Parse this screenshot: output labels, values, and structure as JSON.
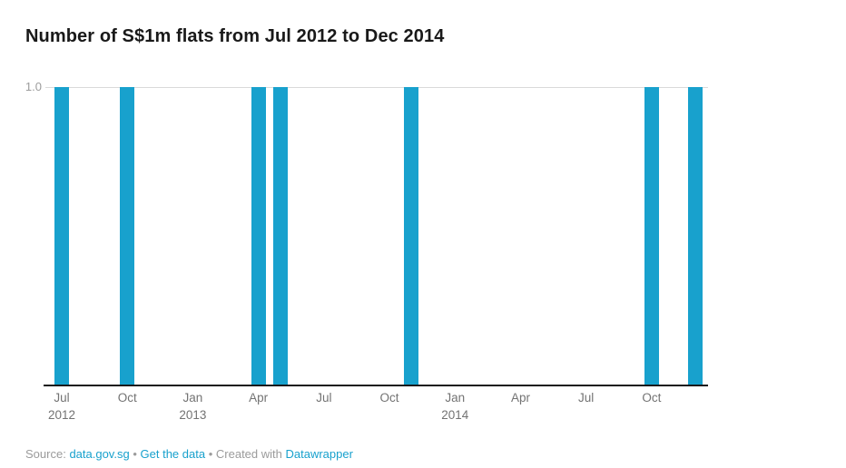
{
  "header": {
    "title": "Number of S$1m flats from Jul 2012 to Dec 2014"
  },
  "chart_data": {
    "type": "bar",
    "title": "Number of S$1m flats from Jul 2012 to Dec 2014",
    "categories": [
      "Jul 2012",
      "Aug 2012",
      "Sep 2012",
      "Oct 2012",
      "Nov 2012",
      "Dec 2012",
      "Jan 2013",
      "Feb 2013",
      "Mar 2013",
      "Apr 2013",
      "May 2013",
      "Jun 2013",
      "Jul 2013",
      "Aug 2013",
      "Sep 2013",
      "Oct 2013",
      "Nov 2013",
      "Dec 2013",
      "Jan 2014",
      "Feb 2014",
      "Mar 2014",
      "Apr 2014",
      "May 2014",
      "Jun 2014",
      "Jul 2014",
      "Aug 2014",
      "Sep 2014",
      "Oct 2014",
      "Nov 2014",
      "Dec 2014"
    ],
    "values": [
      1,
      0,
      0,
      1,
      0,
      0,
      0,
      0,
      0,
      1,
      1,
      0,
      0,
      0,
      0,
      0,
      1,
      0,
      0,
      0,
      0,
      0,
      0,
      0,
      0,
      0,
      0,
      1,
      0,
      1
    ],
    "xlabel": "",
    "ylabel": "",
    "ylim": [
      0,
      1
    ],
    "grid": "single horizontal gridline at y=1.0",
    "legend": "none",
    "bar_color": "#18a1cd",
    "y_axis": {
      "tick_label": "1.0"
    },
    "x_ticks": [
      {
        "month": "Jul",
        "year": "2012",
        "index": 0
      },
      {
        "month": "Oct",
        "index": 3
      },
      {
        "month": "Jan",
        "year": "2013",
        "index": 6
      },
      {
        "month": "Apr",
        "index": 9
      },
      {
        "month": "Jul",
        "index": 12
      },
      {
        "month": "Oct",
        "index": 15
      },
      {
        "month": "Jan",
        "year": "2014",
        "index": 18
      },
      {
        "month": "Apr",
        "index": 21
      },
      {
        "month": "Jul",
        "index": 24
      },
      {
        "month": "Oct",
        "index": 27
      }
    ]
  },
  "footer": {
    "source_label": "Source:",
    "source_link": "data.gov.sg",
    "separator": "•",
    "get_data_link": "Get the data",
    "created_with_label": "Created with",
    "tool_link": "Datawrapper"
  },
  "colors": {
    "bar": "#18a1cd",
    "link": "#18a1cd",
    "title": "#191919",
    "tick_label": "#737373",
    "y_label": "#9c9c9c",
    "gridline": "#dadada",
    "axis_line": "#191919",
    "footer_text": "#9b9b9b"
  }
}
